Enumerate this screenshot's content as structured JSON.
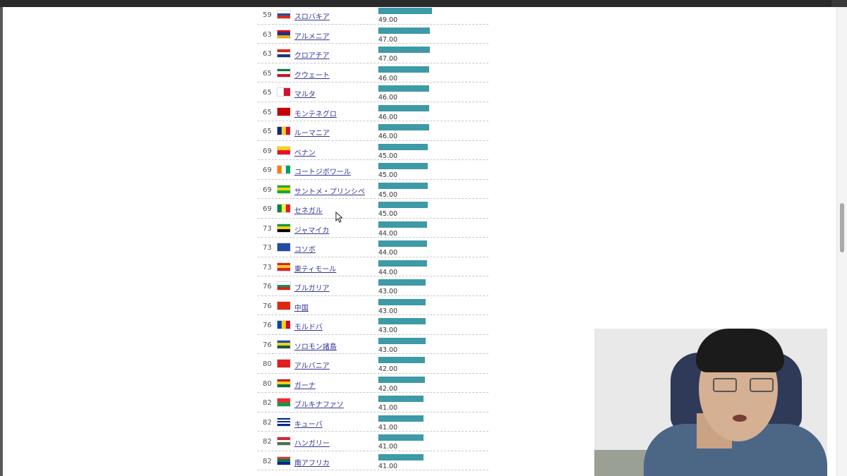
{
  "colors": {
    "bar": "#3e9aa6",
    "link": "#333399"
  },
  "rows": [
    {
      "rank": "59",
      "name": "スロバキア",
      "value": "49.00",
      "score": 49,
      "flag": "slovakia"
    },
    {
      "rank": "63",
      "name": "アルメニア",
      "value": "47.00",
      "score": 47,
      "flag": "armenia"
    },
    {
      "rank": "63",
      "name": "クロアチア",
      "value": "47.00",
      "score": 47,
      "flag": "croatia"
    },
    {
      "rank": "65",
      "name": "クウェート",
      "value": "46.00",
      "score": 46,
      "flag": "kuwait"
    },
    {
      "rank": "65",
      "name": "マルタ",
      "value": "46.00",
      "score": 46,
      "flag": "malta"
    },
    {
      "rank": "65",
      "name": "モンテネグロ",
      "value": "46.00",
      "score": 46,
      "flag": "montenegro"
    },
    {
      "rank": "65",
      "name": "ルーマニア",
      "value": "46.00",
      "score": 46,
      "flag": "romania"
    },
    {
      "rank": "69",
      "name": "ベナン",
      "value": "45.00",
      "score": 45,
      "flag": "benin"
    },
    {
      "rank": "69",
      "name": "コートジボワール",
      "value": "45.00",
      "score": 45,
      "flag": "ivory-coast"
    },
    {
      "rank": "69",
      "name": "サントメ・プリンシペ",
      "value": "45.00",
      "score": 45,
      "flag": "sao-tome"
    },
    {
      "rank": "69",
      "name": "セネガル",
      "value": "45.00",
      "score": 45,
      "flag": "senegal"
    },
    {
      "rank": "73",
      "name": "ジャマイカ",
      "value": "44.00",
      "score": 44,
      "flag": "jamaica"
    },
    {
      "rank": "73",
      "name": "コソボ",
      "value": "44.00",
      "score": 44,
      "flag": "kosovo"
    },
    {
      "rank": "73",
      "name": "東ティモール",
      "value": "44.00",
      "score": 44,
      "flag": "timor-leste"
    },
    {
      "rank": "76",
      "name": "ブルガリア",
      "value": "43.00",
      "score": 43,
      "flag": "bulgaria"
    },
    {
      "rank": "76",
      "name": "中国",
      "value": "43.00",
      "score": 43,
      "flag": "china"
    },
    {
      "rank": "76",
      "name": "モルドバ",
      "value": "43.00",
      "score": 43,
      "flag": "moldova"
    },
    {
      "rank": "76",
      "name": "ソロモン諸島",
      "value": "43.00",
      "score": 43,
      "flag": "solomon-islands"
    },
    {
      "rank": "80",
      "name": "アルバニア",
      "value": "42.00",
      "score": 42,
      "flag": "albania"
    },
    {
      "rank": "80",
      "name": "ガーナ",
      "value": "42.00",
      "score": 42,
      "flag": "ghana"
    },
    {
      "rank": "82",
      "name": "ブルキナファソ",
      "value": "41.00",
      "score": 41,
      "flag": "burkina-faso"
    },
    {
      "rank": "82",
      "name": "キューバ",
      "value": "41.00",
      "score": 41,
      "flag": "cuba"
    },
    {
      "rank": "82",
      "name": "ハンガリー",
      "value": "41.00",
      "score": 41,
      "flag": "hungary"
    },
    {
      "rank": "82",
      "name": "南アフリカ",
      "value": "41.00",
      "score": 41,
      "flag": "south-africa"
    }
  ]
}
